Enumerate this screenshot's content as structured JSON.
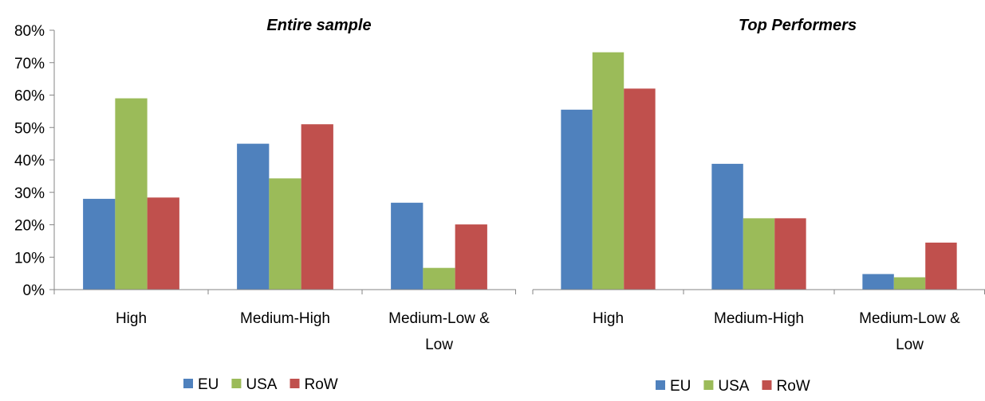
{
  "chart_data": [
    {
      "type": "bar",
      "title": "Entire sample",
      "xlabel": "",
      "ylabel": "",
      "categories": [
        "High",
        "Medium-High",
        "Medium-Low & Low"
      ],
      "category_lines": [
        [
          "High"
        ],
        [
          "Medium-High"
        ],
        [
          "Medium-Low &",
          "Low"
        ]
      ],
      "series": [
        {
          "name": "EU",
          "values": [
            28,
            45,
            26.8
          ]
        },
        {
          "name": "USA",
          "values": [
            59,
            34.3,
            6.7
          ]
        },
        {
          "name": "RoW",
          "values": [
            28.4,
            51,
            20.1
          ]
        }
      ],
      "y_ticks": [
        "0%",
        "10%",
        "20%",
        "30%",
        "40%",
        "50%",
        "60%",
        "70%",
        "80%"
      ],
      "ylim": [
        0,
        80
      ],
      "grid": false,
      "legend": "bottom"
    },
    {
      "type": "bar",
      "title": "Top Performers",
      "xlabel": "",
      "ylabel": "",
      "categories": [
        "High",
        "Medium-High",
        "Medium-Low & Low"
      ],
      "category_lines": [
        [
          "High"
        ],
        [
          "Medium-High"
        ],
        [
          "Medium-Low &",
          "Low"
        ]
      ],
      "series": [
        {
          "name": "EU",
          "values": [
            55.5,
            38.8,
            4.8
          ]
        },
        {
          "name": "USA",
          "values": [
            73.2,
            22,
            3.8
          ]
        },
        {
          "name": "RoW",
          "values": [
            62,
            22,
            14.5
          ]
        }
      ],
      "ylim": [
        0,
        80
      ],
      "grid": false,
      "legend": "bottom"
    }
  ],
  "colors": {
    "EU": "#4f81bd",
    "USA": "#9bbb59",
    "RoW": "#c0504d",
    "axis": "#868686"
  }
}
